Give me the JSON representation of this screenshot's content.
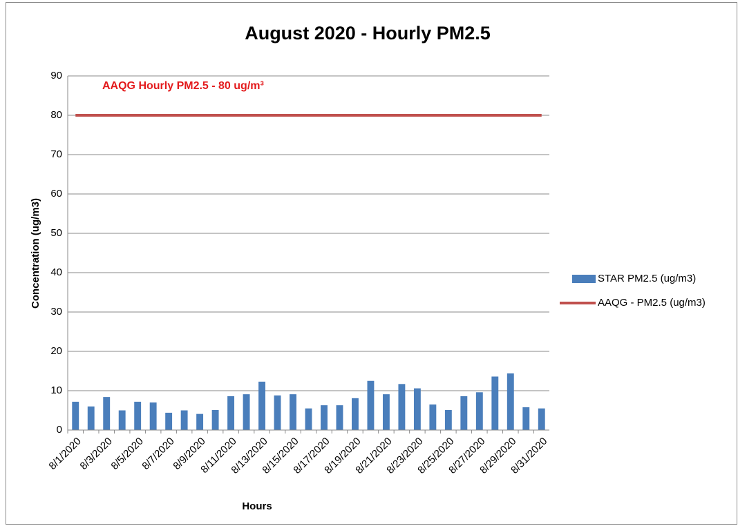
{
  "chart_data": {
    "type": "bar",
    "title": "August 2020 - Hourly PM2.5",
    "annotation": "AAQG Hourly PM2.5 - 80 ug/m³",
    "x_label": "Hours",
    "y_label": "Concentration (ug/m3)",
    "categories": [
      "8/1/2020",
      null,
      "8/3/2020",
      null,
      "8/5/2020",
      null,
      "8/7/2020",
      null,
      "8/9/2020",
      null,
      "8/11/2020",
      null,
      "8/13/2020",
      null,
      "8/15/2020",
      null,
      "8/17/2020",
      null,
      "8/19/2020",
      null,
      "8/21/2020",
      null,
      "8/23/2020",
      null,
      "8/25/2020",
      null,
      "8/27/2020",
      null,
      "8/29/2020",
      null,
      "8/31/2020"
    ],
    "series": [
      {
        "name": "STAR PM2.5 (ug/m3)",
        "type": "bar",
        "color": "#4a7ebb",
        "values": [
          7.2,
          6.0,
          8.4,
          5.0,
          7.2,
          7.0,
          4.4,
          5.0,
          4.1,
          5.1,
          8.6,
          9.1,
          12.3,
          8.8,
          9.1,
          5.5,
          6.3,
          6.3,
          8.1,
          12.5,
          9.1,
          11.7,
          10.6,
          6.5,
          5.1,
          8.6,
          9.6,
          13.6,
          14.4,
          5.8,
          5.5
        ]
      },
      {
        "name": "AAQG - PM2.5 (ug/m3)",
        "type": "line",
        "color": "#c0504d",
        "values": [
          80,
          80,
          80,
          80,
          80,
          80,
          80,
          80,
          80,
          80,
          80,
          80,
          80,
          80,
          80,
          80,
          80,
          80,
          80,
          80,
          80,
          80,
          80,
          80,
          80,
          80,
          80,
          80,
          80,
          80,
          80
        ]
      }
    ],
    "ylim": [
      0,
      90
    ],
    "yticks": [
      0,
      10,
      20,
      30,
      40,
      50,
      60,
      70,
      80,
      90
    ],
    "grid": true,
    "legend": "right"
  }
}
